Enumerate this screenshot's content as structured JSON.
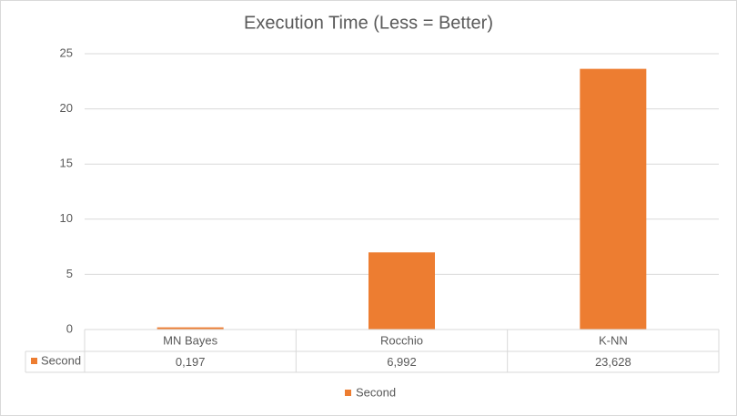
{
  "chart_data": {
    "type": "bar",
    "title": "Execution Time (Less = Better)",
    "categories": [
      "MN Bayes",
      "Rocchio",
      "K-NN"
    ],
    "series": [
      {
        "name": "Second",
        "color": "#ed7d31",
        "values": [
          0.197,
          6.992,
          23.628
        ],
        "value_labels": [
          "0,197",
          "6,992",
          "23,628"
        ]
      }
    ],
    "ylim": [
      0,
      25
    ],
    "yticks": [
      0,
      5,
      10,
      15,
      20,
      25
    ],
    "grid": true,
    "legend": "bottom",
    "data_table": true
  }
}
